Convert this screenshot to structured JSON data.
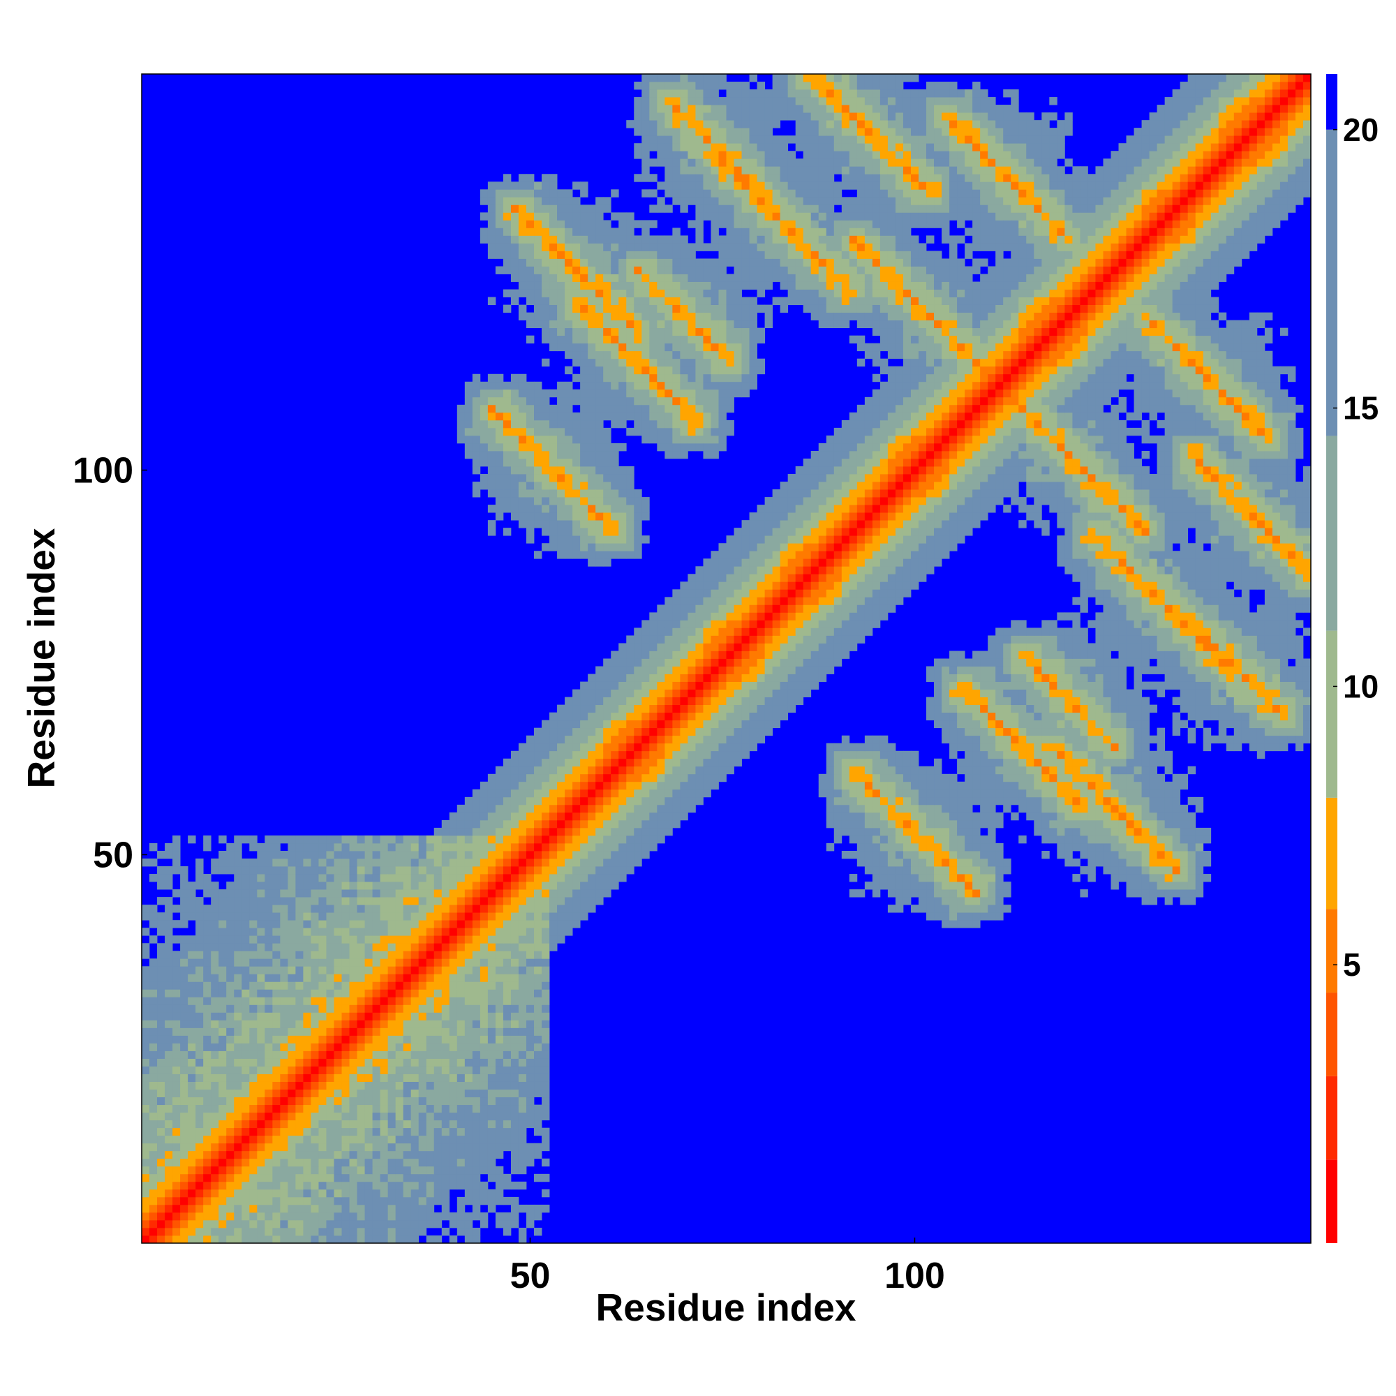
{
  "chart_data": {
    "type": "heatmap",
    "title": "",
    "xlabel": "Residue index",
    "ylabel": "Residue index",
    "n_residues": 152,
    "x_ticks": [
      50,
      100
    ],
    "y_ticks": [
      50,
      100
    ],
    "colorbar": {
      "ticks": [
        5,
        10,
        15,
        20
      ],
      "range": [
        0,
        21
      ],
      "colors": [
        "#ff0000",
        "#ff2a00",
        "#ff5500",
        "#ff7a00",
        "#ffa500",
        "#9fb98e",
        "#8aa9a0",
        "#6d8fb3",
        "#0000ff"
      ],
      "thresholds": [
        1.5,
        3,
        4.5,
        6,
        8,
        11,
        14.5,
        20
      ]
    },
    "structure": {
      "diagonal_block_1": [
        0,
        52
      ],
      "helices": [
        [
          60,
          67
        ],
        [
          73,
          80
        ],
        [
          83,
          90
        ],
        [
          97,
          104
        ],
        [
          114,
          122
        ],
        [
          130,
          136
        ],
        [
          140,
          148
        ]
      ],
      "antiparallel_contacts": [
        {
          "center": [
            53,
            100
          ],
          "half_length": 8
        },
        {
          "center": [
            64,
            114
          ],
          "half_length": 8
        },
        {
          "center": [
            83,
            132
          ],
          "half_length": 9
        },
        {
          "center": [
            94,
            144
          ],
          "half_length": 8
        },
        {
          "center": [
            102,
            120
          ],
          "half_length": 10
        },
        {
          "center": [
            112,
            138
          ],
          "half_length": 8
        },
        {
          "center": [
            70,
            120
          ],
          "half_length": 6
        },
        {
          "center": [
            56,
            126
          ],
          "half_length": 8
        },
        {
          "center": [
            74,
            142
          ],
          "half_length": 6
        }
      ]
    }
  }
}
